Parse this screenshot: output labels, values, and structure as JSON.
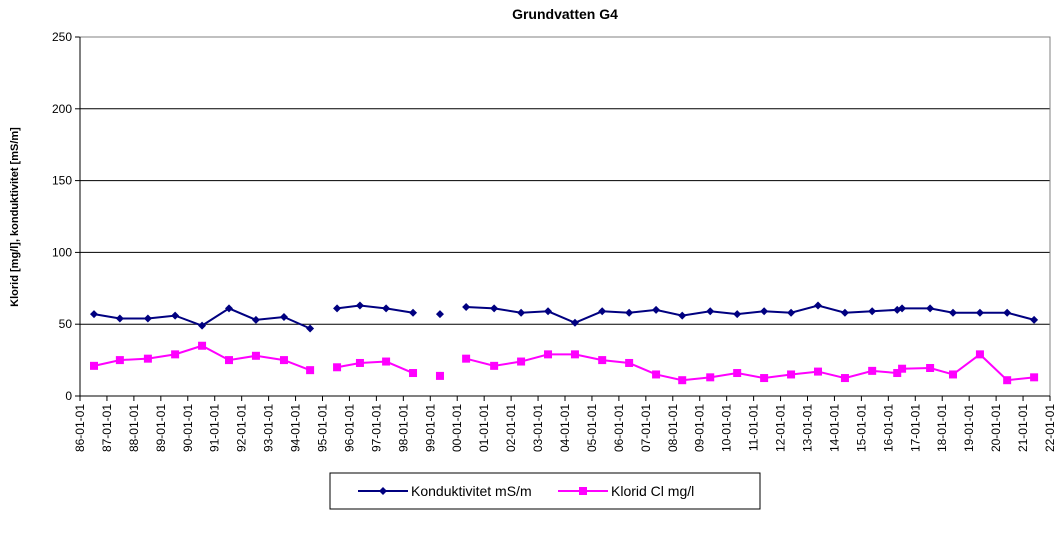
{
  "chart_data": {
    "type": "line",
    "title": "Grundvatten G4",
    "y_label": "Klorid [mg/l], konduktivitet [mS/m]",
    "x": [
      1986.52,
      1987.48,
      1988.52,
      1989.53,
      1990.53,
      1991.53,
      1992.53,
      1993.57,
      1994.54,
      null,
      1995.54,
      1996.39,
      1997.36,
      1998.36,
      null,
      1999.36,
      null,
      2000.33,
      2001.37,
      2002.37,
      2003.37,
      2004.37,
      2005.38,
      2006.38,
      2007.38,
      2008.35,
      2009.39,
      2010.39,
      2011.39,
      2012.39,
      2013.39,
      2014.39,
      2015.4,
      2016.33,
      2016.51,
      2017.55,
      2018.4,
      2019.4,
      2020.41,
      2021.41
    ],
    "series": [
      {
        "name": "Konduktivitet mS/m",
        "color": "#000080",
        "marker": "diamond",
        "values": [
          57,
          54,
          54,
          56,
          49,
          61,
          53,
          55,
          47,
          null,
          61,
          63,
          61,
          58,
          null,
          57,
          null,
          62,
          61,
          58,
          59,
          51,
          59,
          58,
          60,
          56,
          59,
          57,
          59,
          58,
          63,
          58,
          59,
          60,
          61,
          61,
          58,
          58,
          58,
          53
        ]
      },
      {
        "name": "Klorid Cl mg/l",
        "color": "#ff00ff",
        "marker": "square",
        "values": [
          21,
          25,
          26,
          29,
          35,
          25,
          28,
          25,
          18,
          null,
          20,
          23,
          24,
          16,
          null,
          14,
          null,
          26,
          21,
          24,
          29,
          29,
          25,
          23,
          15,
          11,
          13,
          16,
          12.5,
          15,
          17,
          12.5,
          17.5,
          16,
          19,
          19.5,
          15,
          29,
          11,
          13
        ]
      }
    ],
    "xlim": [
      1986,
      2022
    ],
    "xticks": [
      {
        "value": 1986,
        "label": "86-01-01"
      },
      {
        "value": 1987,
        "label": "87-01-01"
      },
      {
        "value": 1988,
        "label": "88-01-01"
      },
      {
        "value": 1989,
        "label": "89-01-01"
      },
      {
        "value": 1990,
        "label": "90-01-01"
      },
      {
        "value": 1991,
        "label": "91-01-01"
      },
      {
        "value": 1992,
        "label": "92-01-01"
      },
      {
        "value": 1993,
        "label": "93-01-01"
      },
      {
        "value": 1994,
        "label": "94-01-01"
      },
      {
        "value": 1995,
        "label": "95-01-01"
      },
      {
        "value": 1996,
        "label": "96-01-01"
      },
      {
        "value": 1997,
        "label": "97-01-01"
      },
      {
        "value": 1998,
        "label": "98-01-01"
      },
      {
        "value": 1999,
        "label": "99-01-01"
      },
      {
        "value": 2000,
        "label": "00-01-01"
      },
      {
        "value": 2001,
        "label": "01-01-01"
      },
      {
        "value": 2002,
        "label": "02-01-01"
      },
      {
        "value": 2003,
        "label": "03-01-01"
      },
      {
        "value": 2004,
        "label": "04-01-01"
      },
      {
        "value": 2005,
        "label": "05-01-01"
      },
      {
        "value": 2006,
        "label": "06-01-01"
      },
      {
        "value": 2007,
        "label": "07-01-01"
      },
      {
        "value": 2008,
        "label": "08-01-01"
      },
      {
        "value": 2009,
        "label": "09-01-01"
      },
      {
        "value": 2010,
        "label": "10-01-01"
      },
      {
        "value": 2011,
        "label": "11-01-01"
      },
      {
        "value": 2012,
        "label": "12-01-01"
      },
      {
        "value": 2013,
        "label": "13-01-01"
      },
      {
        "value": 2014,
        "label": "14-01-01"
      },
      {
        "value": 2015,
        "label": "15-01-01"
      },
      {
        "value": 2016,
        "label": "16-01-01"
      },
      {
        "value": 2017,
        "label": "17-01-01"
      },
      {
        "value": 2018,
        "label": "18-01-01"
      },
      {
        "value": 2019,
        "label": "19-01-01"
      },
      {
        "value": 2020,
        "label": "20-01-01"
      },
      {
        "value": 2021,
        "label": "21-01-01"
      },
      {
        "value": 2022,
        "label": "22-01-01"
      }
    ],
    "ylim": [
      0,
      250
    ],
    "yticks": [
      0,
      50,
      100,
      150,
      200,
      250
    ],
    "grid": true,
    "legend": "bottom"
  }
}
